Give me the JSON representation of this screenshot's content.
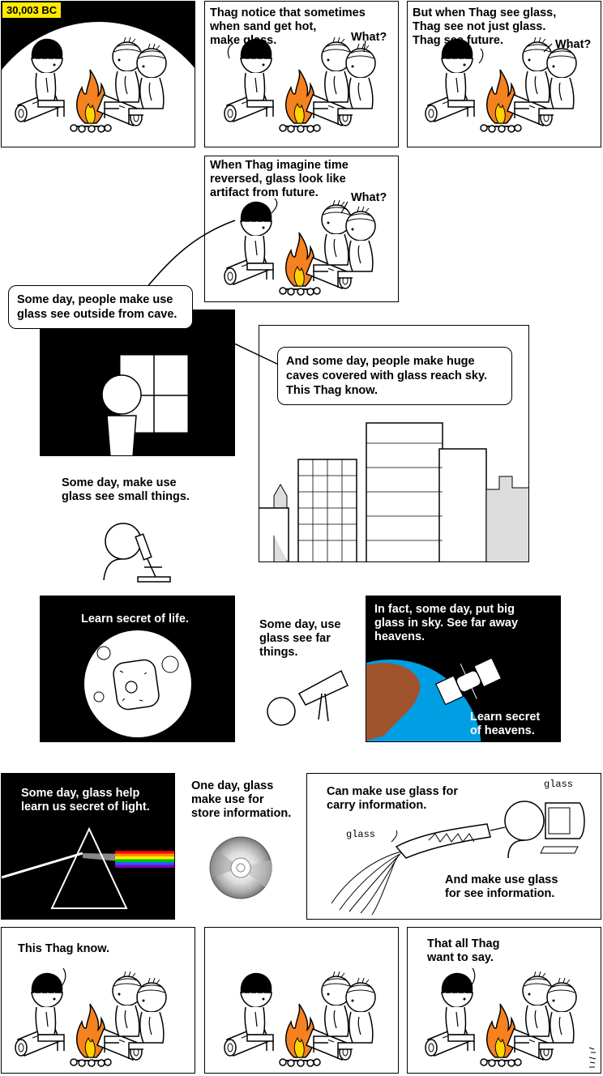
{
  "row1": {
    "date_label": "30,003 BC",
    "p2_caption": "Thag notice that sometimes\nwhen sand get hot,\nmake glass.",
    "p2_what": "What?",
    "p3_caption": "But when Thag see glass,\nThag see not just glass.\nThag see future.",
    "p3_what": "What?"
  },
  "row2": {
    "caption": "When Thag imagine time\nreversed, glass look like\nartifact from future.",
    "what": "What?"
  },
  "future": {
    "bubble_window": "Some day, people make use\nglass see outside from cave.",
    "bubble_sky": "And some day, people make huge\ncaves covered with glass reach sky.\nThis Thag know.",
    "microscope_caption": "Some day, make use\nglass see small things."
  },
  "science": {
    "life_caption": "Learn secret of life.",
    "telescope_caption": "Some day, use\nglass see far\nthings.",
    "heavens_caption_top": "In fact, some day, put big\nglass in sky.  See far away\nheavens.",
    "heavens_caption_bottom": "Learn secret\nof heavens."
  },
  "information": {
    "light_caption": "Some day, glass help\nlearn us secret of light.",
    "store_caption": "One day, glass\nmake use for\nstore information.",
    "carry_caption": "Can make use glass for\ncarry information.",
    "see_caption": "And make use glass\nfor see information.",
    "fiber_label": "glass",
    "monitor_label": "glass"
  },
  "ending": {
    "p1_caption": "This Thag know.",
    "p3_caption": "That all Thag\nwant to say."
  },
  "colors": {
    "date_bg": "#ffeb00",
    "fire": "#f5821f",
    "fire_inner": "#ffd200",
    "ocean": "#009fe3",
    "land": "#a0522d"
  },
  "icons": [
    "fire-icon",
    "thag-figure",
    "listener-figure",
    "log-icon",
    "microscope-icon",
    "telescope-icon",
    "cell-icon",
    "earth-icon",
    "hubble-icon",
    "prism-icon",
    "cd-icon",
    "fiber-icon",
    "monitor-icon",
    "signature-seal"
  ]
}
